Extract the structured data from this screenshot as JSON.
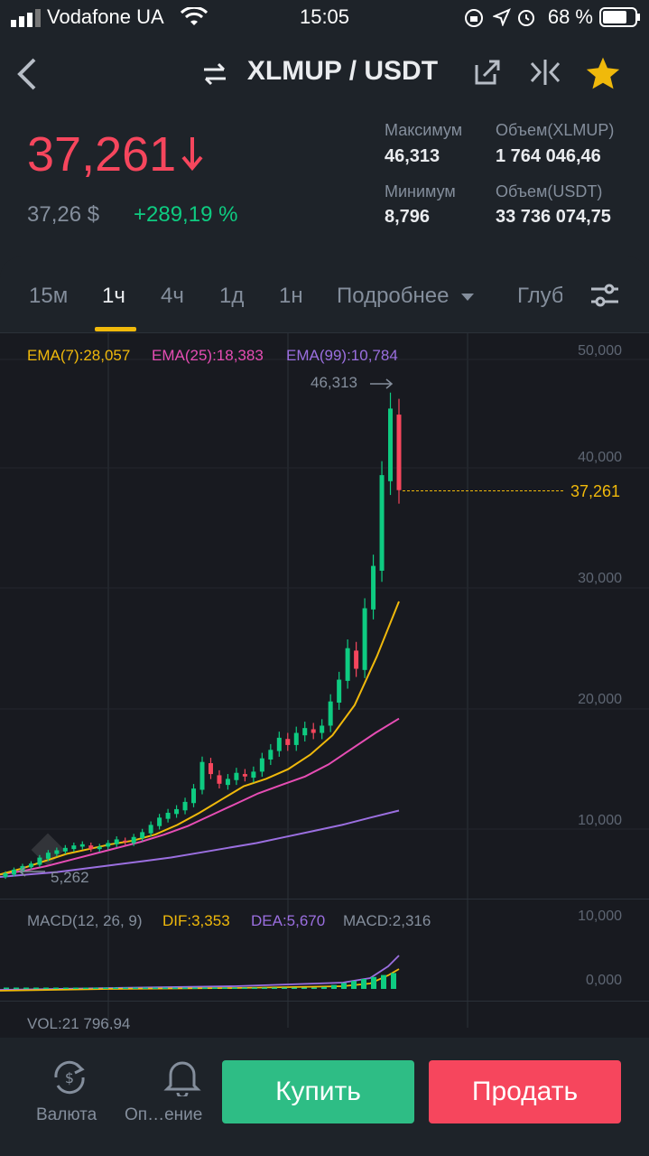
{
  "status_bar": {
    "carrier": "Vodafone UA",
    "time": "15:05",
    "battery": "68 %"
  },
  "header": {
    "title": "XLMUP / USDT"
  },
  "ticker": {
    "price": "37,261",
    "price_usd": "37,26 $",
    "change": "+289,19 %",
    "stats": [
      {
        "label": "Максимум",
        "value": "46,313"
      },
      {
        "label": "Объем(XLMUP)",
        "value": "1 764 046,46"
      },
      {
        "label": "Минимум",
        "value": "8,796"
      },
      {
        "label": "Объем(USDT)",
        "value": "33 736 074,75"
      }
    ]
  },
  "tabs": [
    {
      "label": "15м",
      "active": false
    },
    {
      "label": "1ч",
      "active": true
    },
    {
      "label": "4ч",
      "active": false
    },
    {
      "label": "1д",
      "active": false
    },
    {
      "label": "1н",
      "active": false
    },
    {
      "label": "Подробнее",
      "active": false
    },
    {
      "label": "Глуб",
      "active": false
    }
  ],
  "chart_data": {
    "type": "candlestick",
    "ema_labels": [
      "EMA(7):28,057",
      "EMA(25):18,383",
      "EMA(99):10,784"
    ],
    "y_ticks": [
      "50,000",
      "40,000",
      "30,000",
      "20,000",
      "10,000"
    ],
    "ylim": [
      5262,
      50000
    ],
    "high_label": "46,313",
    "low_label": "5,262",
    "last_price_label": "37,261",
    "candles": [
      [
        5.3,
        5.6
      ],
      [
        5.5,
        5.9
      ],
      [
        5.8,
        6.2
      ],
      [
        6.1,
        6.4
      ],
      [
        6.3,
        6.9
      ],
      [
        6.8,
        7.3
      ],
      [
        7.2,
        7.5
      ],
      [
        7.4,
        7.7
      ],
      [
        7.6,
        7.9
      ],
      [
        7.8,
        8.0
      ],
      [
        7.9,
        7.6
      ],
      [
        7.6,
        7.8
      ],
      [
        7.8,
        8.1
      ],
      [
        8.0,
        8.4
      ],
      [
        8.3,
        8.2
      ],
      [
        8.1,
        8.6
      ],
      [
        8.5,
        9.0
      ],
      [
        8.9,
        9.6
      ],
      [
        9.5,
        10.2
      ],
      [
        10.1,
        10.6
      ],
      [
        10.5,
        10.9
      ],
      [
        10.8,
        11.5
      ],
      [
        11.4,
        12.6
      ],
      [
        12.5,
        14.8
      ],
      [
        14.7,
        13.8
      ],
      [
        13.7,
        13.0
      ],
      [
        12.9,
        13.4
      ],
      [
        13.3,
        13.9
      ],
      [
        13.8,
        13.6
      ],
      [
        13.5,
        14.0
      ],
      [
        14.0,
        15.1
      ],
      [
        15.0,
        15.8
      ],
      [
        15.7,
        16.8
      ],
      [
        16.7,
        16.2
      ],
      [
        16.2,
        17.2
      ],
      [
        17.0,
        17.6
      ],
      [
        17.5,
        17.2
      ],
      [
        17.2,
        17.8
      ],
      [
        17.8,
        19.8
      ],
      [
        19.7,
        21.6
      ],
      [
        21.5,
        24.2
      ],
      [
        24.0,
        22.5
      ],
      [
        22.4,
        27.5
      ],
      [
        27.4,
        31.0
      ],
      [
        30.6,
        38.5
      ],
      [
        38.0,
        44.0
      ],
      [
        43.5,
        37.261
      ]
    ],
    "ema7": [
      5.5,
      6.0,
      6.6,
      7.2,
      7.6,
      8.0,
      8.3,
      8.8,
      9.6,
      10.6,
      11.7,
      12.8,
      13.4,
      14.2,
      15.4,
      17.0,
      19.5,
      23.5,
      28.057
    ],
    "ema25": [
      5.5,
      5.8,
      6.2,
      6.7,
      7.2,
      7.7,
      8.2,
      8.8,
      9.5,
      10.4,
      11.3,
      12.2,
      12.9,
      13.6,
      14.6,
      15.9,
      17.2,
      18.383
    ],
    "ema99": [
      5.3,
      5.5,
      5.7,
      6.0,
      6.3,
      6.6,
      6.9,
      7.3,
      7.7,
      8.1,
      8.6,
      9.1,
      9.6,
      10.2,
      10.784
    ],
    "macd_labels": [
      "MACD(12, 26, 9)",
      "DIF:3,353",
      "DEA:5,670",
      "MACD:2,316"
    ],
    "macd_ticks": [
      "10,000",
      "0,000"
    ],
    "vol_label": "VOL:21 796,94"
  },
  "bottom": {
    "currency_label": "Валюта",
    "alerts_label": "Оп…ение",
    "buy_label": "Купить",
    "sell_label": "Продать"
  },
  "colors": {
    "up": "#0ecb81",
    "down": "#f6465d",
    "accent": "#f0b90b",
    "ema7": "#f0b90b",
    "ema25": "#e64db4",
    "ema99": "#9b6fe0"
  }
}
